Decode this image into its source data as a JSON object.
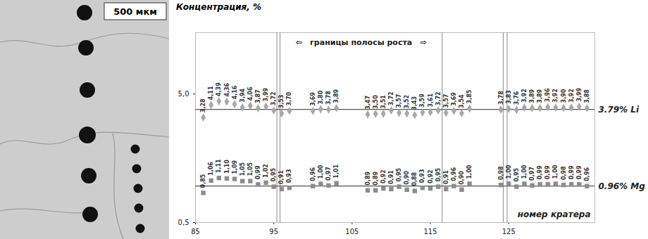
{
  "image": {
    "scale_label": "500 мкм"
  },
  "chart_data": {
    "type": "scatter",
    "title": "Концентрация, %",
    "x_label": "номер кратера",
    "log": "y",
    "data_labels": true,
    "xlim": [
      85,
      136
    ],
    "xticks": [
      85,
      95,
      105,
      115,
      125
    ],
    "ylim": [
      0.5,
      15
    ],
    "yticks": [
      {
        "value": 0.5,
        "label": "0,5"
      },
      {
        "value": 5,
        "label": "5,0"
      }
    ],
    "x": [
      86,
      87,
      88,
      89,
      90,
      91,
      92,
      93,
      94,
      95,
      96,
      97,
      100,
      101,
      102,
      103,
      107,
      108,
      109,
      110,
      111,
      112,
      113,
      114,
      115,
      116,
      117,
      118,
      119,
      120,
      124,
      125,
      126,
      127,
      128,
      129,
      130,
      131,
      132,
      133,
      134,
      135
    ],
    "series": [
      {
        "name": "Li",
        "color": "#a8a8a8",
        "marker": "diamond",
        "values": [
          3.28,
          4.11,
          4.39,
          4.36,
          4.16,
          3.94,
          4.06,
          3.87,
          3.99,
          3.72,
          3.53,
          3.7,
          3.69,
          3.8,
          3.78,
          3.89,
          3.47,
          3.5,
          3.51,
          3.72,
          3.57,
          3.52,
          3.43,
          3.59,
          3.61,
          3.72,
          3.57,
          3.69,
          3.54,
          3.85,
          3.78,
          3.83,
          3.76,
          3.92,
          3.89,
          3.89,
          3.96,
          3.92,
          3.9,
          3.92,
          3.99,
          3.88
        ],
        "value_labels": [
          "3,28",
          "4,11",
          "4,39",
          "4,36",
          "4,16",
          "3,94",
          "4,06",
          "3,87",
          "3,99",
          "3,72",
          "3,53",
          "3,70",
          "3,69",
          "3,80",
          "3,78",
          "3,89",
          "3,47",
          "3,50",
          "3,51",
          "3,72",
          "3,57",
          "3,52",
          "3,43",
          "3,59",
          "3,61",
          "3,72",
          "3,57",
          "3,69",
          "3,54",
          "3,85",
          "3,78",
          "3,83",
          "3,76",
          "3,92",
          "3,89",
          "3,89",
          "3,96",
          "3,92",
          "3,90",
          "3,92",
          "3,99",
          "3,88"
        ]
      },
      {
        "name": "Mg",
        "color": "#8c8c8c",
        "marker": "square",
        "values": [
          0.85,
          1.06,
          1.11,
          1.1,
          1.09,
          1.05,
          1.05,
          0.99,
          1.02,
          0.95,
          0.91,
          0.93,
          0.96,
          1.0,
          0.97,
          1.01,
          0.89,
          0.89,
          0.92,
          0.91,
          0.95,
          0.9,
          0.88,
          0.93,
          0.92,
          0.95,
          0.91,
          0.96,
          0.9,
          1.0,
          0.98,
          1.0,
          0.95,
          1.0,
          0.97,
          0.99,
          0.99,
          1.0,
          0.98,
          0.99,
          0.99,
          0.96
        ],
        "value_labels": [
          "0,85",
          "1,06",
          "1,11",
          "1,10",
          "1,09",
          "1,05",
          "1,05",
          "0,99",
          "1,02",
          "0,95",
          "0,91",
          "0,93",
          "0,96",
          "1,00",
          "0,97",
          "1,01",
          "0,89",
          "0,89",
          "0,92",
          "0,91",
          "0,95",
          "0,90",
          "0,88",
          "0,93",
          "0,92",
          "0,95",
          "0,91",
          "0,96",
          "0,90",
          "1,00",
          "0,98",
          "1,00",
          "0,95",
          "1,00",
          "0,97",
          "0,99",
          "0,99",
          "1,00",
          "0,98",
          "0,99",
          "0,99",
          "0,96"
        ]
      }
    ],
    "reference_lines": [
      {
        "value": 3.79,
        "label": "3.79% Li"
      },
      {
        "value": 0.96,
        "label": "0.96% Mg"
      }
    ],
    "boundaries": [
      95.4,
      95.8,
      116.5,
      124.3,
      124.8
    ],
    "annotations": [
      {
        "text": "⇦   границы полосы роста   ⇨"
      }
    ]
  }
}
